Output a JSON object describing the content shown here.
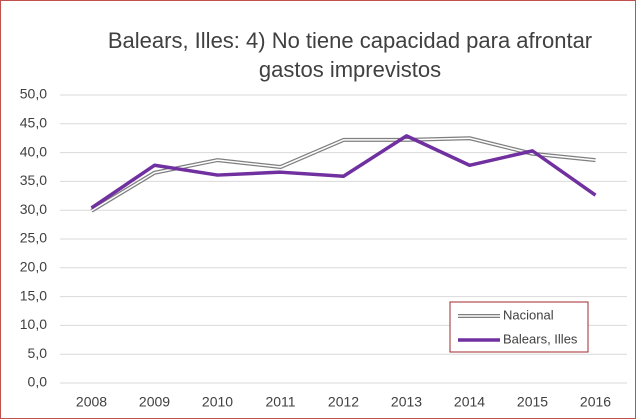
{
  "chart_data": {
    "type": "line",
    "title": "Balears, Illes: 4) No tiene capacidad para afrontar gastos imprevistos",
    "categories": [
      "2008",
      "2009",
      "2010",
      "2011",
      "2012",
      "2013",
      "2014",
      "2015",
      "2016"
    ],
    "series": [
      {
        "name": "Nacional",
        "color": "#7f7f7f",
        "style": "double",
        "values": [
          29.9,
          36.5,
          38.7,
          37.5,
          42.2,
          42.2,
          42.5,
          39.8,
          38.7
        ]
      },
      {
        "name": "Balears, Illes",
        "color": "#7030a0",
        "style": "solid",
        "values": [
          30.4,
          37.8,
          36.1,
          36.6,
          35.9,
          42.9,
          37.8,
          40.3,
          32.6
        ]
      }
    ],
    "ylim": [
      0,
      50
    ],
    "yticks": [
      {
        "value": 0,
        "label": "0,0"
      },
      {
        "value": 5,
        "label": "5,0"
      },
      {
        "value": 10,
        "label": "10,0"
      },
      {
        "value": 15,
        "label": "15,0"
      },
      {
        "value": 20,
        "label": "20,0"
      },
      {
        "value": 25,
        "label": "25,0"
      },
      {
        "value": 30,
        "label": "30,0"
      },
      {
        "value": 35,
        "label": "35,0"
      },
      {
        "value": 40,
        "label": "40,0"
      },
      {
        "value": 45,
        "label": "45,0"
      },
      {
        "value": 50,
        "label": "50,0"
      }
    ],
    "grid": true,
    "legend": "lower-right"
  }
}
